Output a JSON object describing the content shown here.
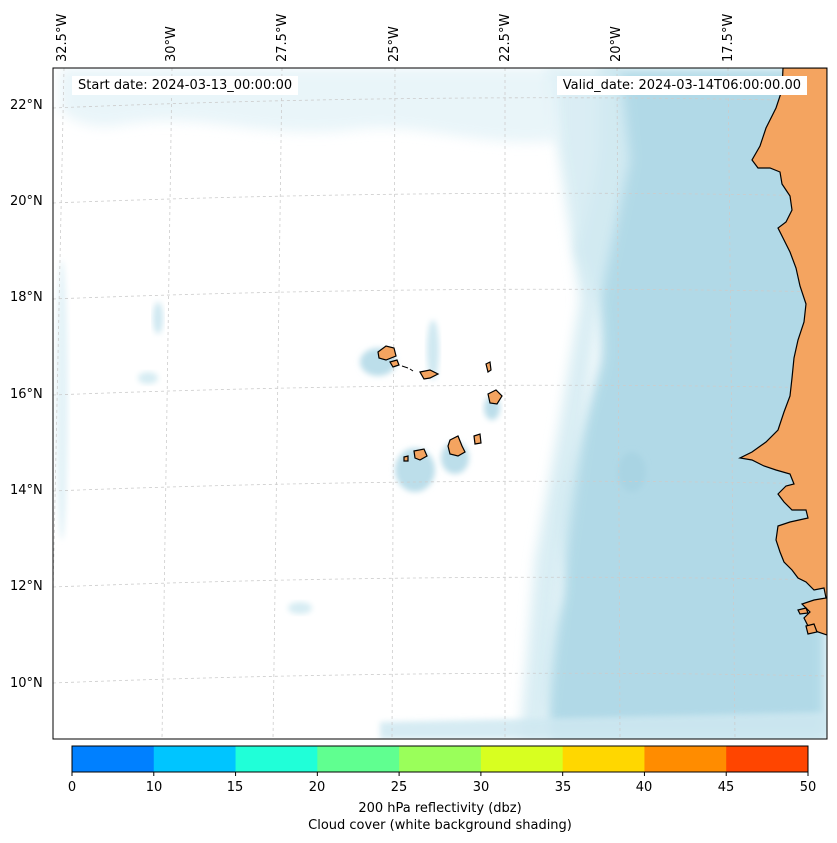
{
  "header": {
    "start_date": "Start date: 2024-03-13_00:00:00",
    "valid_date": "Valid_date: 2024-03-14T06:00:00.00"
  },
  "map": {
    "longitude_labels": [
      "32.5°W",
      "30°W",
      "27.5°W",
      "25°W",
      "22.5°W",
      "20°W",
      "17.5°W"
    ],
    "latitude_labels": [
      "22°N",
      "20°N",
      "18°N",
      "16°N",
      "14°N",
      "12°N",
      "10°N"
    ],
    "land_color": "#f4a460",
    "cloud_color": "#add8e6",
    "coastline_color": "#000000"
  },
  "colorbar": {
    "ticks": [
      "0",
      "10",
      "15",
      "20",
      "25",
      "30",
      "35",
      "40",
      "45",
      "50"
    ],
    "colors": [
      "#0080ff",
      "#00c5ff",
      "#20ffd8",
      "#60ff90",
      "#9aff5a",
      "#d8ff20",
      "#ffd700",
      "#ff8c00",
      "#ff4500"
    ],
    "label": "200 hPa reflectivity (dbz)",
    "sublabel": "Cloud cover (white background shading)"
  }
}
